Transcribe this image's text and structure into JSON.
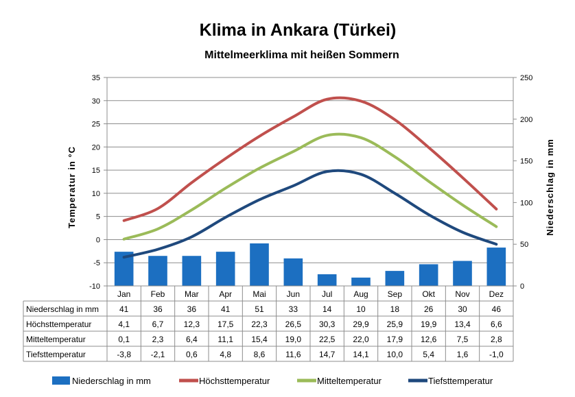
{
  "title": "Klima in Ankara (Türkei)",
  "subtitle": "Mittelmeerklima mit heißen Sommern",
  "chart_data": {
    "type": "bar+line",
    "categories": [
      "Jan",
      "Feb",
      "Mar",
      "Apr",
      "Mai",
      "Jun",
      "Jul",
      "Aug",
      "Sep",
      "Okt",
      "Nov",
      "Dez"
    ],
    "ylabel_left": "Temperatur  in  °C",
    "ylabel_right": "Niederschlag  in  mm",
    "ylim_left": [
      -10,
      35
    ],
    "yticks_left": [
      "35",
      "30",
      "25",
      "20",
      "15",
      "10",
      "5",
      "0",
      "-5",
      "-10"
    ],
    "ylim_right": [
      0,
      250
    ],
    "yticks_right": [
      "250",
      "200",
      "150",
      "100",
      "50",
      "0"
    ],
    "grid": true,
    "legend_position": "bottom",
    "series": [
      {
        "name": "Niederschlag in mm",
        "type": "bar",
        "axis": "right",
        "color": "#1c6fc1",
        "values": [
          41,
          36,
          36,
          41,
          51,
          33,
          14,
          10,
          18,
          26,
          30,
          46
        ],
        "labels": [
          "41",
          "36",
          "36",
          "41",
          "51",
          "33",
          "14",
          "10",
          "18",
          "26",
          "30",
          "46"
        ]
      },
      {
        "name": "Höchsttemperatur",
        "type": "line",
        "axis": "left",
        "color": "#c0504d",
        "values": [
          4.1,
          6.7,
          12.3,
          17.5,
          22.3,
          26.5,
          30.3,
          29.9,
          25.9,
          19.9,
          13.4,
          6.6
        ],
        "labels": [
          "4,1",
          "6,7",
          "12,3",
          "17,5",
          "22,3",
          "26,5",
          "30,3",
          "29,9",
          "25,9",
          "19,9",
          "13,4",
          "6,6"
        ]
      },
      {
        "name": "Mitteltemperatur",
        "type": "line",
        "axis": "left",
        "color": "#9bbb59",
        "values": [
          0.1,
          2.3,
          6.4,
          11.1,
          15.4,
          19.0,
          22.5,
          22.0,
          17.9,
          12.6,
          7.5,
          2.8
        ],
        "labels": [
          "0,1",
          "2,3",
          "6,4",
          "11,1",
          "15,4",
          "19,0",
          "22,5",
          "22,0",
          "17,9",
          "12,6",
          "7,5",
          "2,8"
        ]
      },
      {
        "name": "Tiefsttemperatur",
        "type": "line",
        "axis": "left",
        "color": "#1f497d",
        "values": [
          -3.8,
          -2.1,
          0.6,
          4.8,
          8.6,
          11.6,
          14.7,
          14.1,
          10.0,
          5.4,
          1.6,
          -1.0
        ],
        "labels": [
          "-3,8",
          "-2,1",
          "0,6",
          "4,8",
          "8,6",
          "11,6",
          "14,7",
          "14,1",
          "10,0",
          "5,4",
          "1,6",
          "-1,0"
        ]
      }
    ]
  }
}
